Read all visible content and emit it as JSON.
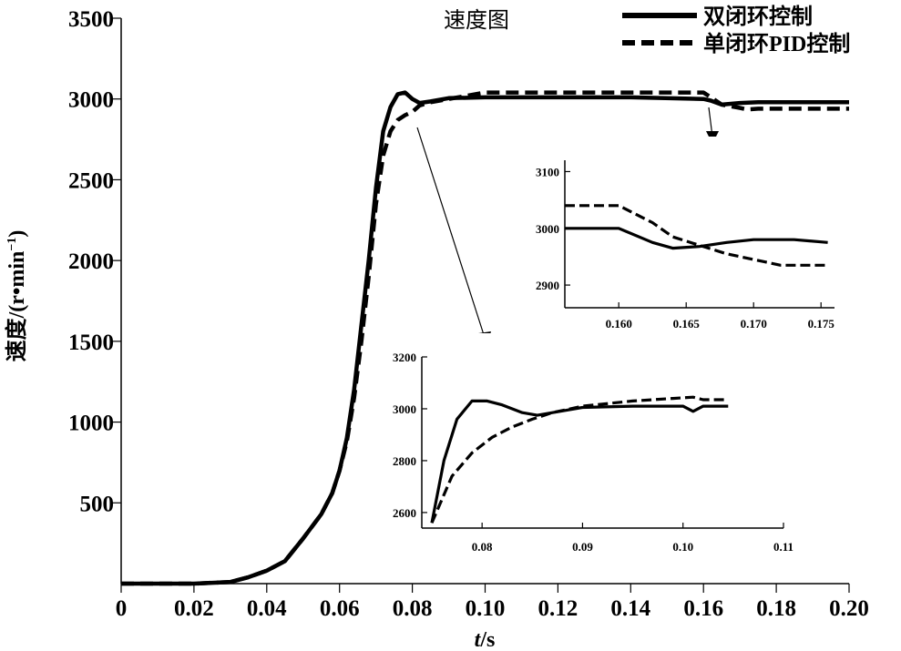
{
  "colors": {
    "line": "#000000",
    "background": "#ffffff"
  },
  "chart_data": [
    {
      "id": "main",
      "type": "line",
      "title": "速度图",
      "xlabel_italic": "t",
      "xlabel_rest": "/s",
      "ylabel": "速度/(r•min",
      "ylabel_sup": "−1",
      "ylabel_end": ")",
      "xlim": [
        0,
        0.2
      ],
      "ylim": [
        0,
        3500
      ],
      "xticks": [
        0,
        0.02,
        0.04,
        0.06,
        0.08,
        0.1,
        0.12,
        0.14,
        0.16,
        0.18,
        0.2
      ],
      "xtick_labels": [
        "0",
        "0.02",
        "0.04",
        "0.06",
        "0.08",
        "0.10",
        "0.12",
        "0.14",
        "0.16",
        "0.18",
        "0.20"
      ],
      "yticks": [
        500,
        1000,
        1500,
        2000,
        2500,
        3000,
        3500
      ],
      "ytick_labels": [
        "500",
        "1000",
        "1500",
        "2000",
        "2500",
        "3000",
        "3500"
      ],
      "legend_position": "top-right",
      "series": [
        {
          "name": "双闭环控制",
          "style": "solid",
          "x": [
            0,
            0.02,
            0.03,
            0.035,
            0.04,
            0.045,
            0.05,
            0.055,
            0.058,
            0.06,
            0.062,
            0.064,
            0.066,
            0.068,
            0.07,
            0.072,
            0.074,
            0.076,
            0.078,
            0.08,
            0.082,
            0.085,
            0.09,
            0.1,
            0.12,
            0.14,
            0.16,
            0.162,
            0.165,
            0.17,
            0.175,
            0.2
          ],
          "y": [
            0,
            0,
            10,
            40,
            80,
            140,
            280,
            430,
            560,
            700,
            900,
            1200,
            1600,
            2000,
            2450,
            2800,
            2950,
            3030,
            3040,
            3000,
            2975,
            2985,
            3005,
            3010,
            3010,
            3010,
            3000,
            2990,
            2965,
            2975,
            2980,
            2980
          ]
        },
        {
          "name": "单闭环PID控制",
          "style": "dashed",
          "x": [
            0,
            0.02,
            0.03,
            0.035,
            0.04,
            0.045,
            0.05,
            0.055,
            0.058,
            0.06,
            0.062,
            0.064,
            0.066,
            0.068,
            0.07,
            0.072,
            0.074,
            0.076,
            0.078,
            0.08,
            0.082,
            0.085,
            0.09,
            0.095,
            0.1,
            0.12,
            0.14,
            0.16,
            0.165,
            0.17,
            0.172,
            0.175,
            0.2
          ],
          "y": [
            0,
            0,
            10,
            40,
            80,
            140,
            280,
            430,
            560,
            700,
            880,
            1150,
            1500,
            1900,
            2350,
            2650,
            2800,
            2870,
            2900,
            2920,
            2960,
            2980,
            3000,
            3020,
            3040,
            3040,
            3040,
            3040,
            2965,
            2945,
            2935,
            2940,
            2940
          ]
        }
      ]
    },
    {
      "id": "inset-top",
      "type": "line",
      "xlim": [
        0.156,
        0.176
      ],
      "ylim": [
        2860,
        3120
      ],
      "xticks": [
        0.16,
        0.165,
        0.17,
        0.175
      ],
      "xtick_labels": [
        "0.160",
        "0.165",
        "0.170",
        "0.175"
      ],
      "yticks": [
        2900,
        3000,
        3100
      ],
      "ytick_labels": [
        "2900",
        "3000",
        "3100"
      ],
      "series": [
        {
          "name": "双闭环控制",
          "style": "solid",
          "x": [
            0.156,
            0.16,
            0.1625,
            0.164,
            0.166,
            0.168,
            0.17,
            0.173,
            0.1755
          ],
          "y": [
            3000,
            3000,
            2975,
            2965,
            2968,
            2975,
            2980,
            2980,
            2975
          ]
        },
        {
          "name": "单闭环PID控制",
          "style": "dashed",
          "x": [
            0.156,
            0.16,
            0.1625,
            0.164,
            0.166,
            0.168,
            0.17,
            0.172,
            0.1755
          ],
          "y": [
            3040,
            3040,
            3010,
            2985,
            2970,
            2955,
            2945,
            2935,
            2935
          ]
        }
      ]
    },
    {
      "id": "inset-bottom",
      "type": "line",
      "xlim": [
        0.074,
        0.11
      ],
      "ylim": [
        2540,
        3200
      ],
      "xticks": [
        0.08,
        0.09,
        0.1,
        0.11
      ],
      "xtick_labels": [
        "0.08",
        "0.09",
        "0.10",
        "0.11"
      ],
      "yticks": [
        2600,
        2800,
        3000,
        3200
      ],
      "ytick_labels": [
        "2600",
        "2800",
        "3000",
        "3200"
      ],
      "series": [
        {
          "name": "双闭环控制",
          "style": "solid",
          "x": [
            0.075,
            0.0762,
            0.0775,
            0.079,
            0.0805,
            0.082,
            0.084,
            0.0855,
            0.087,
            0.09,
            0.095,
            0.1,
            0.101,
            0.102,
            0.1045
          ],
          "y": [
            2560,
            2800,
            2960,
            3030,
            3030,
            3015,
            2985,
            2975,
            2985,
            3005,
            3010,
            3010,
            2990,
            3010,
            3010
          ]
        },
        {
          "name": "单闭环PID控制",
          "style": "dashed",
          "x": [
            0.075,
            0.077,
            0.079,
            0.081,
            0.083,
            0.085,
            0.087,
            0.09,
            0.095,
            0.099,
            0.101,
            0.102,
            0.1045
          ],
          "y": [
            2560,
            2740,
            2830,
            2890,
            2930,
            2960,
            2985,
            3010,
            3030,
            3040,
            3045,
            3035,
            3035
          ]
        }
      ]
    }
  ]
}
